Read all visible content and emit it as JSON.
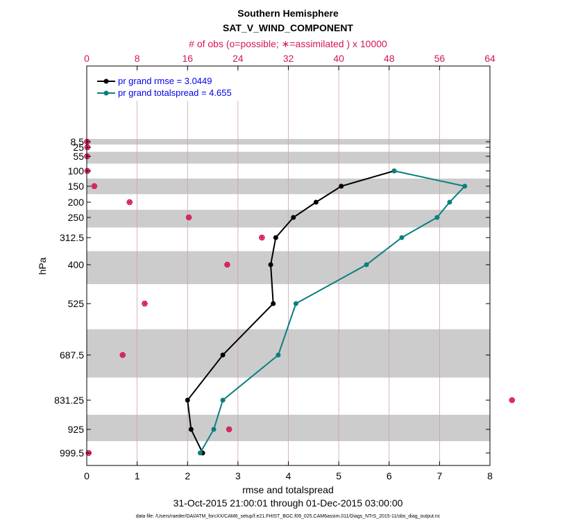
{
  "chart_data": {
    "type": "line",
    "title": "Southern Hemisphere",
    "subtitle": "SAT_V_WIND_COMPONENT",
    "top_axis_label": "# of obs (o=possible; ∗=assimilated ) x 10000",
    "xlabel": "rmse and totalspread",
    "ylabel": "hPa",
    "date_range": "31-Oct-2015 21:00:01 through 01-Dec-2015 03:00:00",
    "data_file": "data file: /Users/raeder/DAI/ATM_forcXX/CAM6_setup/f.e21.FHIST_BGC.f09_025.CAM6assim.011/Diags_NTrS_2015-11/obs_diag_output.nc",
    "xlim": [
      0,
      8
    ],
    "xticks": [
      "0",
      "1",
      "2",
      "3",
      "4",
      "5",
      "6",
      "7",
      "8"
    ],
    "top_xlim": [
      0,
      64
    ],
    "top_xticks": [
      "0",
      "8",
      "16",
      "24",
      "32",
      "40",
      "48",
      "56",
      "64"
    ],
    "levels": [
      "8.5",
      "25",
      "55",
      "100",
      "150",
      "200",
      "250",
      "312.5",
      "400",
      "525",
      "687.5",
      "831.25",
      "925",
      "999.5"
    ],
    "level_values": [
      8.5,
      25,
      55,
      100,
      150,
      200,
      250,
      312.5,
      400,
      525,
      687.5,
      831.25,
      925,
      999.5
    ],
    "grid": "x",
    "legend_position": "top-left",
    "series": [
      {
        "name": "pr grand rmse = 3.0449",
        "color": "#000000",
        "values": [
          null,
          null,
          null,
          6.1,
          5.05,
          4.55,
          4.1,
          3.75,
          3.65,
          3.7,
          2.7,
          2.0,
          2.07,
          2.3
        ]
      },
      {
        "name": "pr grand totalspread = 4.655",
        "color": "#0a7f7f",
        "values": [
          null,
          null,
          null,
          6.1,
          7.5,
          7.2,
          6.95,
          6.25,
          5.55,
          4.15,
          3.8,
          2.7,
          2.52,
          2.25
        ]
      }
    ],
    "obs_counts": {
      "color": "#d4145a",
      "possible": [
        0.05,
        0.1,
        0.05,
        0.1,
        1.2,
        6.8,
        16.2,
        27.8,
        22.3,
        9.2,
        5.7,
        67.5,
        22.6,
        0.3
      ],
      "assimilated": [
        0.05,
        0.1,
        0.05,
        0.1,
        1.2,
        6.8,
        16.2,
        27.8,
        22.3,
        9.2,
        5.7,
        67.5,
        22.6,
        0.3
      ]
    }
  }
}
